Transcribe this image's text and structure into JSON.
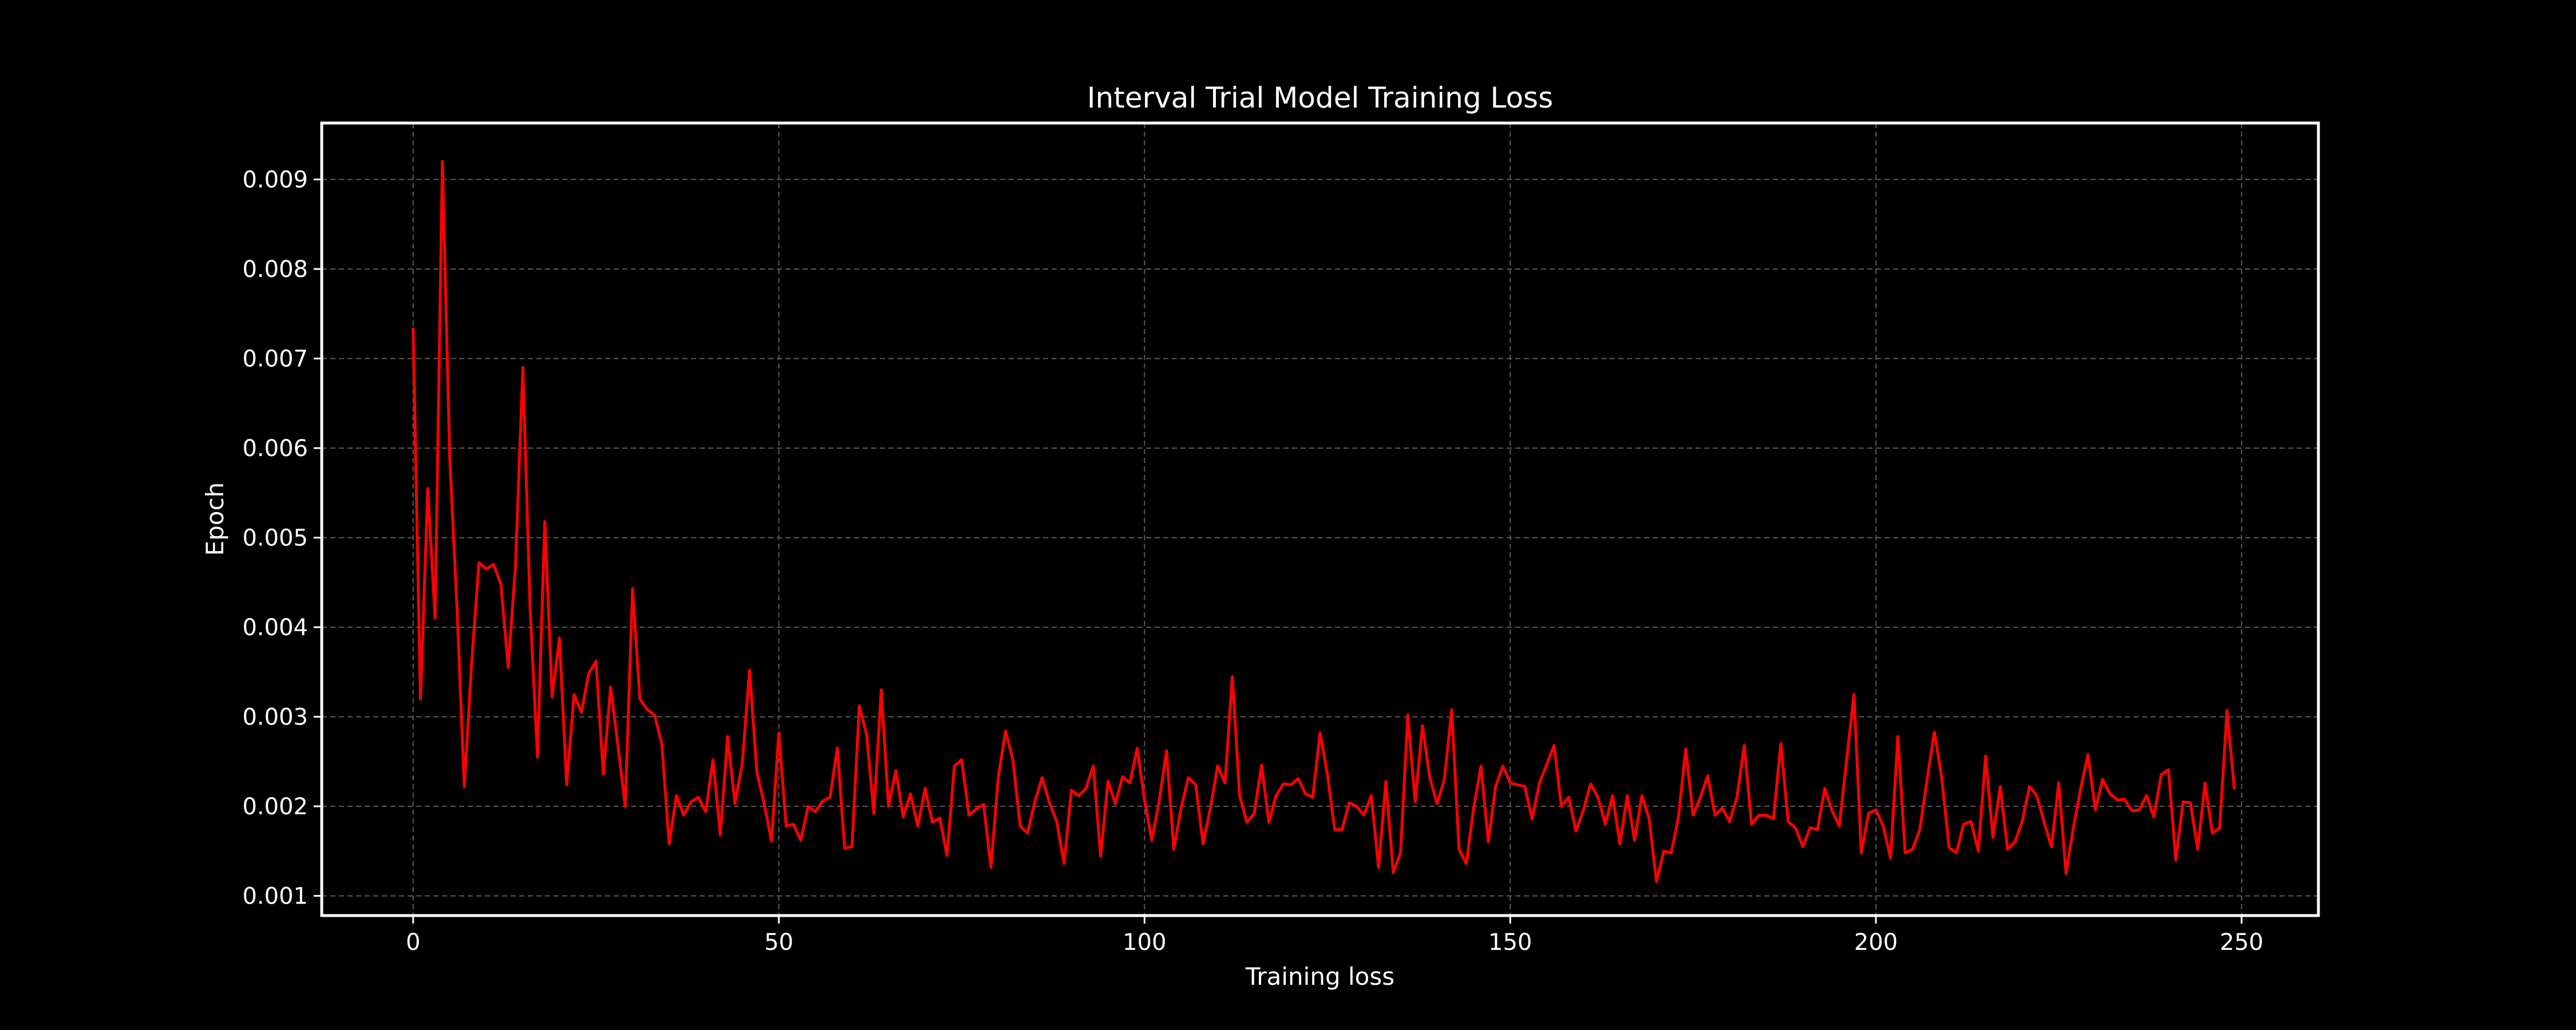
{
  "chart_data": {
    "type": "line",
    "title": "Interval Trial Model Training Loss",
    "xlabel": "Training loss",
    "ylabel": "Epoch",
    "xlim": [
      -12.5,
      260.5
    ],
    "ylim": [
      0.00078,
      0.00963
    ],
    "xticks": [
      0,
      50,
      100,
      150,
      200,
      250
    ],
    "yticks": [
      0.001,
      0.002,
      0.003,
      0.004,
      0.005,
      0.006,
      0.007,
      0.008,
      0.009
    ],
    "ytick_labels": [
      "0.001",
      "0.002",
      "0.003",
      "0.004",
      "0.005",
      "0.006",
      "0.007",
      "0.008",
      "0.009"
    ],
    "grid": true,
    "colors": {
      "background": "#000000",
      "foreground": "#ffffff",
      "series": "#ff0000",
      "grid": "#5a5a5a"
    },
    "series": [
      {
        "color": "#ff0000",
        "x_start": 0,
        "x_step": 1,
        "values": [
          0.00733,
          0.0032,
          0.00555,
          0.0041,
          0.0092,
          0.0059,
          0.0042,
          0.00222,
          0.0036,
          0.00472,
          0.00465,
          0.0047,
          0.00448,
          0.00355,
          0.0047,
          0.0069,
          0.0042,
          0.00255,
          0.00518,
          0.00322,
          0.00388,
          0.00224,
          0.00325,
          0.00305,
          0.00348,
          0.00362,
          0.00236,
          0.00333,
          0.00268,
          0.002,
          0.00443,
          0.0032,
          0.00308,
          0.00302,
          0.0027,
          0.00158,
          0.00212,
          0.0019,
          0.00205,
          0.0021,
          0.00194,
          0.00252,
          0.00168,
          0.00278,
          0.00203,
          0.00248,
          0.00352,
          0.00238,
          0.00203,
          0.00161,
          0.00282,
          0.00178,
          0.0018,
          0.00162,
          0.002,
          0.00194,
          0.00206,
          0.0021,
          0.00265,
          0.00153,
          0.00155,
          0.00312,
          0.0028,
          0.00192,
          0.0033,
          0.002,
          0.0024,
          0.00188,
          0.00214,
          0.00178,
          0.0022,
          0.00182,
          0.00187,
          0.00145,
          0.00245,
          0.00252,
          0.0019,
          0.00197,
          0.00202,
          0.00132,
          0.00232,
          0.00284,
          0.00252,
          0.00178,
          0.0017,
          0.00205,
          0.00232,
          0.00204,
          0.00183,
          0.00136,
          0.00218,
          0.00212,
          0.0022,
          0.00245,
          0.00144,
          0.00228,
          0.00203,
          0.00233,
          0.00226,
          0.00265,
          0.00207,
          0.00162,
          0.00205,
          0.00262,
          0.00152,
          0.00198,
          0.00232,
          0.00224,
          0.00158,
          0.00198,
          0.00245,
          0.00226,
          0.00345,
          0.00212,
          0.00182,
          0.00192,
          0.00246,
          0.00182,
          0.00212,
          0.00225,
          0.00224,
          0.00231,
          0.00214,
          0.0021,
          0.00282,
          0.00236,
          0.00174,
          0.00174,
          0.00204,
          0.002,
          0.0019,
          0.00212,
          0.00132,
          0.00228,
          0.00126,
          0.00148,
          0.00302,
          0.00205,
          0.0029,
          0.00232,
          0.00203,
          0.0023,
          0.00308,
          0.00152,
          0.00136,
          0.00198,
          0.00245,
          0.0016,
          0.00222,
          0.00245,
          0.00226,
          0.00224,
          0.00222,
          0.00186,
          0.00226,
          0.00247,
          0.00268,
          0.002,
          0.0021,
          0.00172,
          0.00196,
          0.00225,
          0.0021,
          0.0018,
          0.00212,
          0.00158,
          0.00212,
          0.00162,
          0.00212,
          0.00186,
          0.00116,
          0.0015,
          0.00148,
          0.00188,
          0.00264,
          0.0019,
          0.0021,
          0.00234,
          0.0019,
          0.00198,
          0.00183,
          0.0021,
          0.00268,
          0.0018,
          0.0019,
          0.0019,
          0.00186,
          0.0027,
          0.00183,
          0.00176,
          0.00155,
          0.00176,
          0.00174,
          0.0022,
          0.00195,
          0.00178,
          0.00252,
          0.00325,
          0.00148,
          0.00192,
          0.00196,
          0.00178,
          0.00142,
          0.00278,
          0.00148,
          0.00152,
          0.00174,
          0.0023,
          0.00283,
          0.00232,
          0.00154,
          0.00148,
          0.0018,
          0.00183,
          0.0015,
          0.00256,
          0.00165,
          0.00222,
          0.00152,
          0.0016,
          0.00183,
          0.00222,
          0.00212,
          0.00182,
          0.00155,
          0.00226,
          0.00125,
          0.00176,
          0.0022,
          0.00258,
          0.00196,
          0.0023,
          0.00214,
          0.00207,
          0.00208,
          0.00195,
          0.00196,
          0.00212,
          0.00188,
          0.00235,
          0.00241,
          0.0014,
          0.00205,
          0.00204,
          0.00152,
          0.00226,
          0.0017,
          0.00176,
          0.00307,
          0.0022
        ]
      }
    ]
  }
}
